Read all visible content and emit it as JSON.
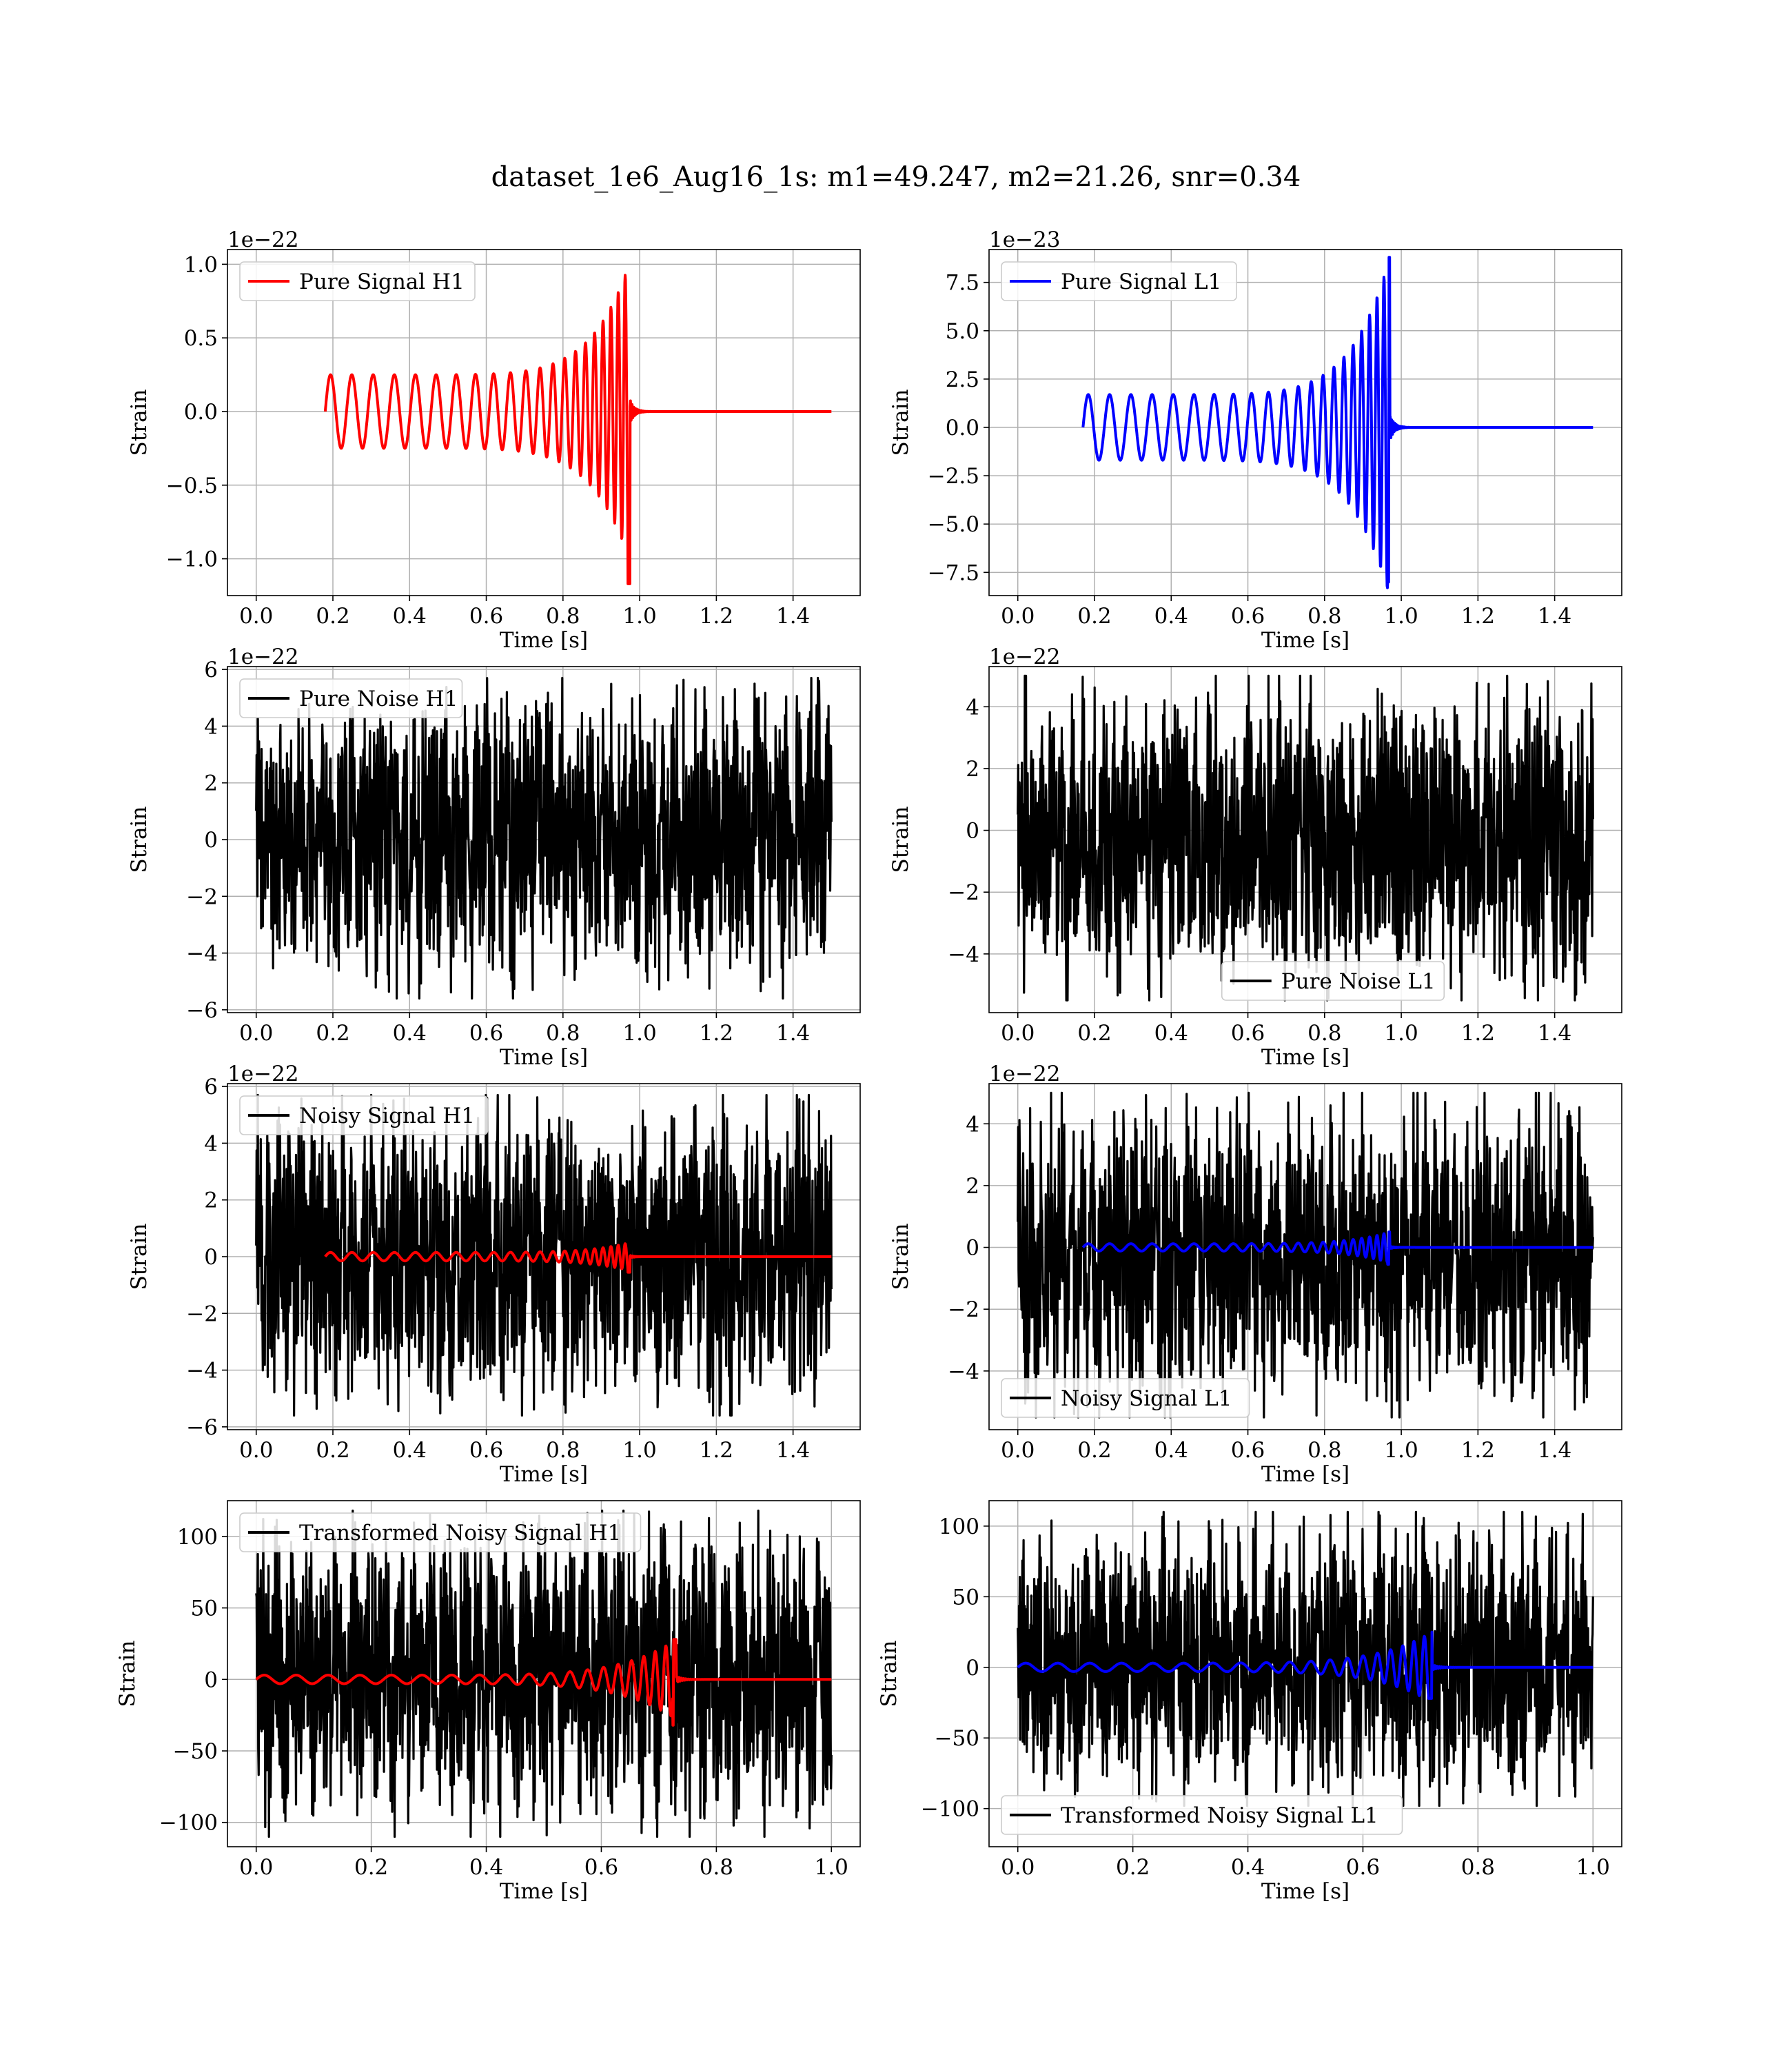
{
  "figure_title": "dataset_1e6_Aug16_1s: m1=49.247, m2=21.26, snr=0.34",
  "colors": {
    "h1_signal": "#ff0000",
    "l1_signal": "#0000ff",
    "noise": "#000000",
    "grid": "#b0b0b0"
  },
  "chart_data": [
    {
      "type": "line",
      "title": "",
      "xlabel": "Time [s]",
      "ylabel": "Strain",
      "offset_text": "1e−22",
      "xlim": [
        -0.075,
        1.575
      ],
      "ylim": [
        -1.25,
        1.1
      ],
      "grid": true,
      "legend_placement": "top-left",
      "xticks": [
        "0.0",
        "0.2",
        "0.4",
        "0.6",
        "0.8",
        "1.0",
        "1.2",
        "1.4"
      ],
      "yticks": [
        "−1.0",
        "−0.5",
        "0.0",
        "0.5",
        "1.0"
      ],
      "series": [
        {
          "name": "Pure Signal H1",
          "color": "#ff0000",
          "kind": "chirp",
          "t_start": 0.18,
          "t_merge": 0.975,
          "t_end": 1.5,
          "start_amp": 0.25,
          "peak_pos": 1.02,
          "peak_neg": -1.17
        }
      ]
    },
    {
      "type": "line",
      "title": "",
      "xlabel": "Time [s]",
      "ylabel": "Strain",
      "offset_text": "1e−23",
      "xlim": [
        -0.075,
        1.575
      ],
      "ylim": [
        -8.7,
        9.2
      ],
      "grid": true,
      "legend_placement": "top-left",
      "xticks": [
        "0.0",
        "0.2",
        "0.4",
        "0.6",
        "0.8",
        "1.0",
        "1.2",
        "1.4"
      ],
      "yticks": [
        "−7.5",
        "−5.0",
        "−2.5",
        "0.0",
        "2.5",
        "5.0",
        "7.5"
      ],
      "series": [
        {
          "name": "Pure Signal L1",
          "color": "#0000ff",
          "kind": "chirp",
          "t_start": 0.17,
          "t_merge": 0.97,
          "t_end": 1.5,
          "start_amp": 1.7,
          "peak_pos": 8.8,
          "peak_neg": -8.0
        }
      ]
    },
    {
      "type": "line",
      "title": "",
      "xlabel": "Time [s]",
      "ylabel": "Strain",
      "offset_text": "1e−22",
      "xlim": [
        -0.075,
        1.575
      ],
      "ylim": [
        -6.1,
        6.1
      ],
      "grid": true,
      "legend_placement": "top-left",
      "xticks": [
        "0.0",
        "0.2",
        "0.4",
        "0.6",
        "0.8",
        "1.0",
        "1.2",
        "1.4"
      ],
      "yticks": [
        "−6",
        "−4",
        "−2",
        "0",
        "2",
        "4",
        "6"
      ],
      "series": [
        {
          "name": "Pure Noise H1",
          "color": "#000000",
          "kind": "noise",
          "t_start": 0.0,
          "t_end": 1.5,
          "y_range": [
            -5.6,
            5.7
          ]
        }
      ]
    },
    {
      "type": "line",
      "title": "",
      "xlabel": "Time [s]",
      "ylabel": "Strain",
      "offset_text": "1e−22",
      "xlim": [
        -0.075,
        1.575
      ],
      "ylim": [
        -5.9,
        5.3
      ],
      "grid": true,
      "legend_placement": "bottom-center",
      "xticks": [
        "0.0",
        "0.2",
        "0.4",
        "0.6",
        "0.8",
        "1.0",
        "1.2",
        "1.4"
      ],
      "yticks": [
        "−4",
        "−2",
        "0",
        "2",
        "4"
      ],
      "series": [
        {
          "name": "Pure Noise L1",
          "color": "#000000",
          "kind": "noise",
          "t_start": 0.0,
          "t_end": 1.5,
          "y_range": [
            -5.5,
            5.0
          ]
        }
      ]
    },
    {
      "type": "line",
      "title": "",
      "xlabel": "Time [s]",
      "ylabel": "Strain",
      "offset_text": "1e−22",
      "xlim": [
        -0.075,
        1.575
      ],
      "ylim": [
        -6.1,
        6.1
      ],
      "grid": true,
      "legend_placement": "top-left",
      "xticks": [
        "0.0",
        "0.2",
        "0.4",
        "0.6",
        "0.8",
        "1.0",
        "1.2",
        "1.4"
      ],
      "yticks": [
        "−6",
        "−4",
        "−2",
        "0",
        "2",
        "4",
        "6"
      ],
      "series": [
        {
          "name": "Noisy Signal H1",
          "color": "#000000",
          "kind": "noise",
          "t_start": 0.0,
          "t_end": 1.5,
          "y_range": [
            -5.6,
            5.7
          ]
        },
        {
          "color": "#ff0000",
          "kind": "chirp",
          "t_start": 0.18,
          "t_merge": 0.975,
          "t_end": 1.5,
          "start_amp": 0.15,
          "peak_pos": 0.5,
          "peak_neg": -0.55
        }
      ]
    },
    {
      "type": "line",
      "title": "",
      "xlabel": "Time [s]",
      "ylabel": "Strain",
      "offset_text": "1e−22",
      "xlim": [
        -0.075,
        1.575
      ],
      "ylim": [
        -5.9,
        5.3
      ],
      "grid": true,
      "legend_placement": "bottom-left",
      "xticks": [
        "0.0",
        "0.2",
        "0.4",
        "0.6",
        "0.8",
        "1.0",
        "1.2",
        "1.4"
      ],
      "yticks": [
        "−4",
        "−2",
        "0",
        "2",
        "4"
      ],
      "series": [
        {
          "name": "Noisy Signal L1",
          "color": "#000000",
          "kind": "noise",
          "t_start": 0.0,
          "t_end": 1.5,
          "y_range": [
            -5.5,
            5.0
          ]
        },
        {
          "color": "#0000ff",
          "kind": "chirp",
          "t_start": 0.17,
          "t_merge": 0.97,
          "t_end": 1.5,
          "start_amp": 0.12,
          "peak_pos": 0.5,
          "peak_neg": -0.55
        }
      ]
    },
    {
      "type": "line",
      "title": "",
      "xlabel": "Time [s]",
      "ylabel": "Strain",
      "offset_text": "",
      "xlim": [
        -0.05,
        1.05
      ],
      "ylim": [
        -117,
        125
      ],
      "grid": true,
      "legend_placement": "top-left",
      "xticks": [
        "0.0",
        "0.2",
        "0.4",
        "0.6",
        "0.8",
        "1.0"
      ],
      "yticks": [
        "−100",
        "−50",
        "0",
        "50",
        "100"
      ],
      "series": [
        {
          "name": "Transformed Noisy Signal H1",
          "color": "#000000",
          "kind": "noise",
          "t_start": 0.0,
          "t_end": 1.0,
          "y_range": [
            -110,
            118
          ]
        },
        {
          "color": "#ff0000",
          "kind": "chirp",
          "t_start": 0.0,
          "t_merge": 0.73,
          "t_end": 1.0,
          "start_amp": 3,
          "peak_pos": 28,
          "peak_neg": -32
        }
      ]
    },
    {
      "type": "line",
      "title": "",
      "xlabel": "Time [s]",
      "ylabel": "Strain",
      "offset_text": "",
      "xlim": [
        -0.05,
        1.05
      ],
      "ylim": [
        -127,
        118
      ],
      "grid": true,
      "legend_placement": "bottom-left",
      "xticks": [
        "0.0",
        "0.2",
        "0.4",
        "0.6",
        "0.8",
        "1.0"
      ],
      "yticks": [
        "−100",
        "−50",
        "0",
        "50",
        "100"
      ],
      "series": [
        {
          "name": "Transformed Noisy Signal L1",
          "color": "#000000",
          "kind": "noise",
          "t_start": 0.0,
          "t_end": 1.0,
          "y_range": [
            -98,
            110
          ]
        },
        {
          "color": "#0000ff",
          "kind": "chirp",
          "t_start": 0.0,
          "t_merge": 0.72,
          "t_end": 1.0,
          "start_amp": 3,
          "peak_pos": 25,
          "peak_neg": -22
        }
      ]
    }
  ]
}
